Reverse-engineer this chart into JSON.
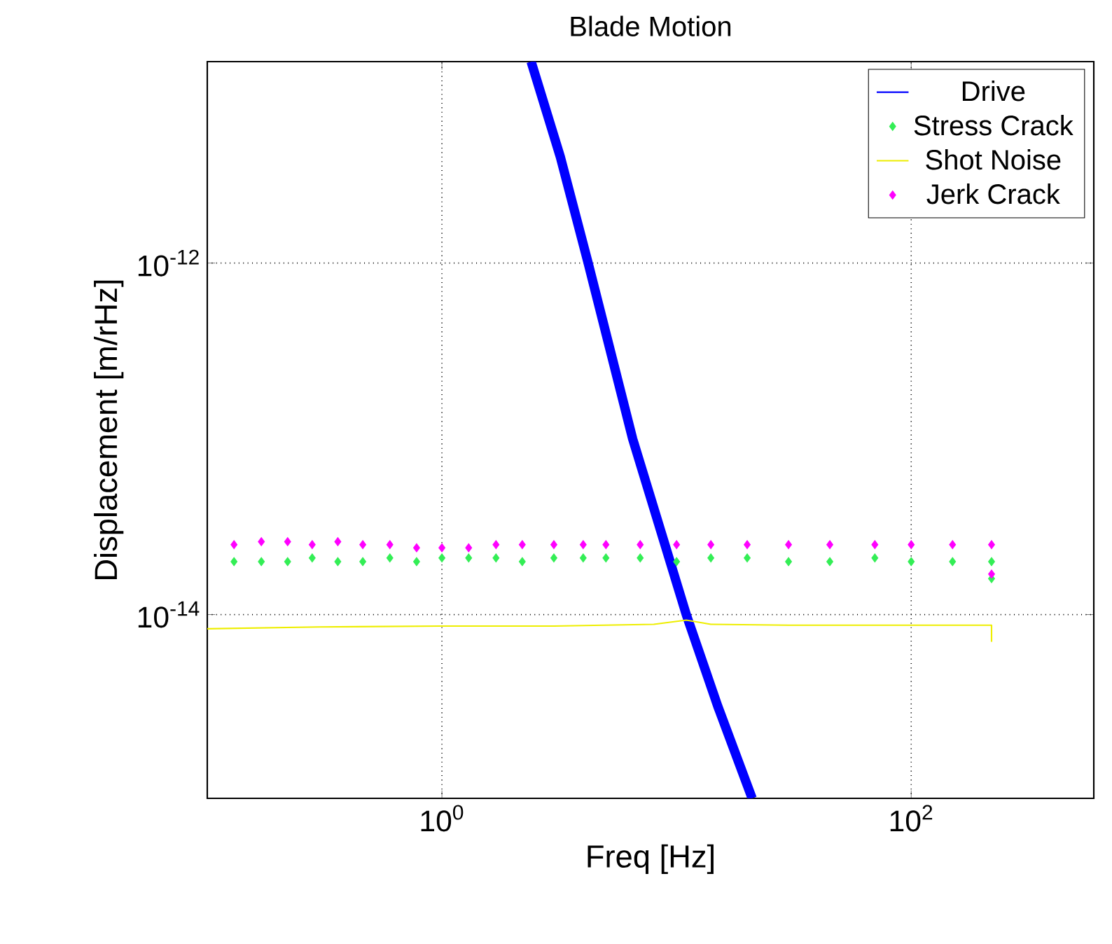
{
  "chart_data": {
    "type": "line",
    "title": "Blade Motion",
    "xlabel": "Freq [Hz]",
    "ylabel": "Displacement [m/rHz]",
    "log": "xy",
    "grid": true,
    "legend": "top right",
    "xlim": [
      0.1,
      600
    ],
    "ylim": [
      9e-16,
      1.4e-11
    ],
    "xticks": [
      {
        "value": 1,
        "label": "10$^{0}$"
      },
      {
        "value": 100,
        "label": "10$^{2}$"
      }
    ],
    "yticks": [
      {
        "value": 1e-14,
        "label": "10$^{-14}$"
      },
      {
        "value": 1e-12,
        "label": "10$^{-12}$"
      }
    ],
    "series": [
      {
        "name": "Drive",
        "color": "#0000ff",
        "x": [
          2.4,
          3.2,
          4.2,
          6.5,
          11,
          15,
          21
        ],
        "values": [
          1.4e-11,
          4e-12,
          1e-12,
          1e-13,
          1e-14,
          3e-15,
          9e-16
        ]
      },
      {
        "name": "Stress Crack",
        "type": "scatter",
        "marker": "diamond",
        "color": "#33ee55",
        "x": [
          0.13,
          0.17,
          0.22,
          0.28,
          0.36,
          0.46,
          0.6,
          0.78,
          1,
          1.3,
          1.7,
          2.2,
          3,
          4,
          5,
          7,
          10,
          14,
          20,
          30,
          45,
          70,
          100,
          150,
          220,
          220
        ],
        "values": [
          2e-14,
          2e-14,
          2e-14,
          2.1e-14,
          2e-14,
          2e-14,
          2.1e-14,
          2e-14,
          2.1e-14,
          2.1e-14,
          2.1e-14,
          2e-14,
          2.1e-14,
          2.1e-14,
          2.1e-14,
          2.1e-14,
          2e-14,
          2.1e-14,
          2.1e-14,
          2e-14,
          2e-14,
          2.1e-14,
          2e-14,
          2e-14,
          2e-14,
          1.6e-14
        ]
      },
      {
        "name": "Shot Noise",
        "color": "#eeee00",
        "x": [
          0.1,
          0.3,
          1,
          3,
          8,
          11,
          14,
          30,
          100,
          210,
          220,
          220
        ],
        "values": [
          8.3e-15,
          8.5e-15,
          8.6e-15,
          8.6e-15,
          8.8e-15,
          9.3e-15,
          8.8e-15,
          8.7e-15,
          8.7e-15,
          8.7e-15,
          8.7e-15,
          7e-15
        ]
      },
      {
        "name": "Jerk Crack",
        "type": "scatter",
        "marker": "diamond",
        "color": "#ff00ff",
        "x": [
          0.13,
          0.17,
          0.22,
          0.28,
          0.36,
          0.46,
          0.6,
          0.78,
          1,
          1.3,
          1.7,
          2.2,
          3,
          4,
          5,
          7,
          10,
          14,
          20,
          30,
          45,
          70,
          100,
          150,
          220,
          220
        ],
        "values": [
          2.5e-14,
          2.6e-14,
          2.6e-14,
          2.5e-14,
          2.6e-14,
          2.5e-14,
          2.5e-14,
          2.4e-14,
          2.4e-14,
          2.4e-14,
          2.5e-14,
          2.5e-14,
          2.5e-14,
          2.5e-14,
          2.5e-14,
          2.5e-14,
          2.5e-14,
          2.5e-14,
          2.5e-14,
          2.5e-14,
          2.5e-14,
          2.5e-14,
          2.5e-14,
          2.5e-14,
          2.5e-14,
          1.7e-14
        ]
      }
    ]
  }
}
